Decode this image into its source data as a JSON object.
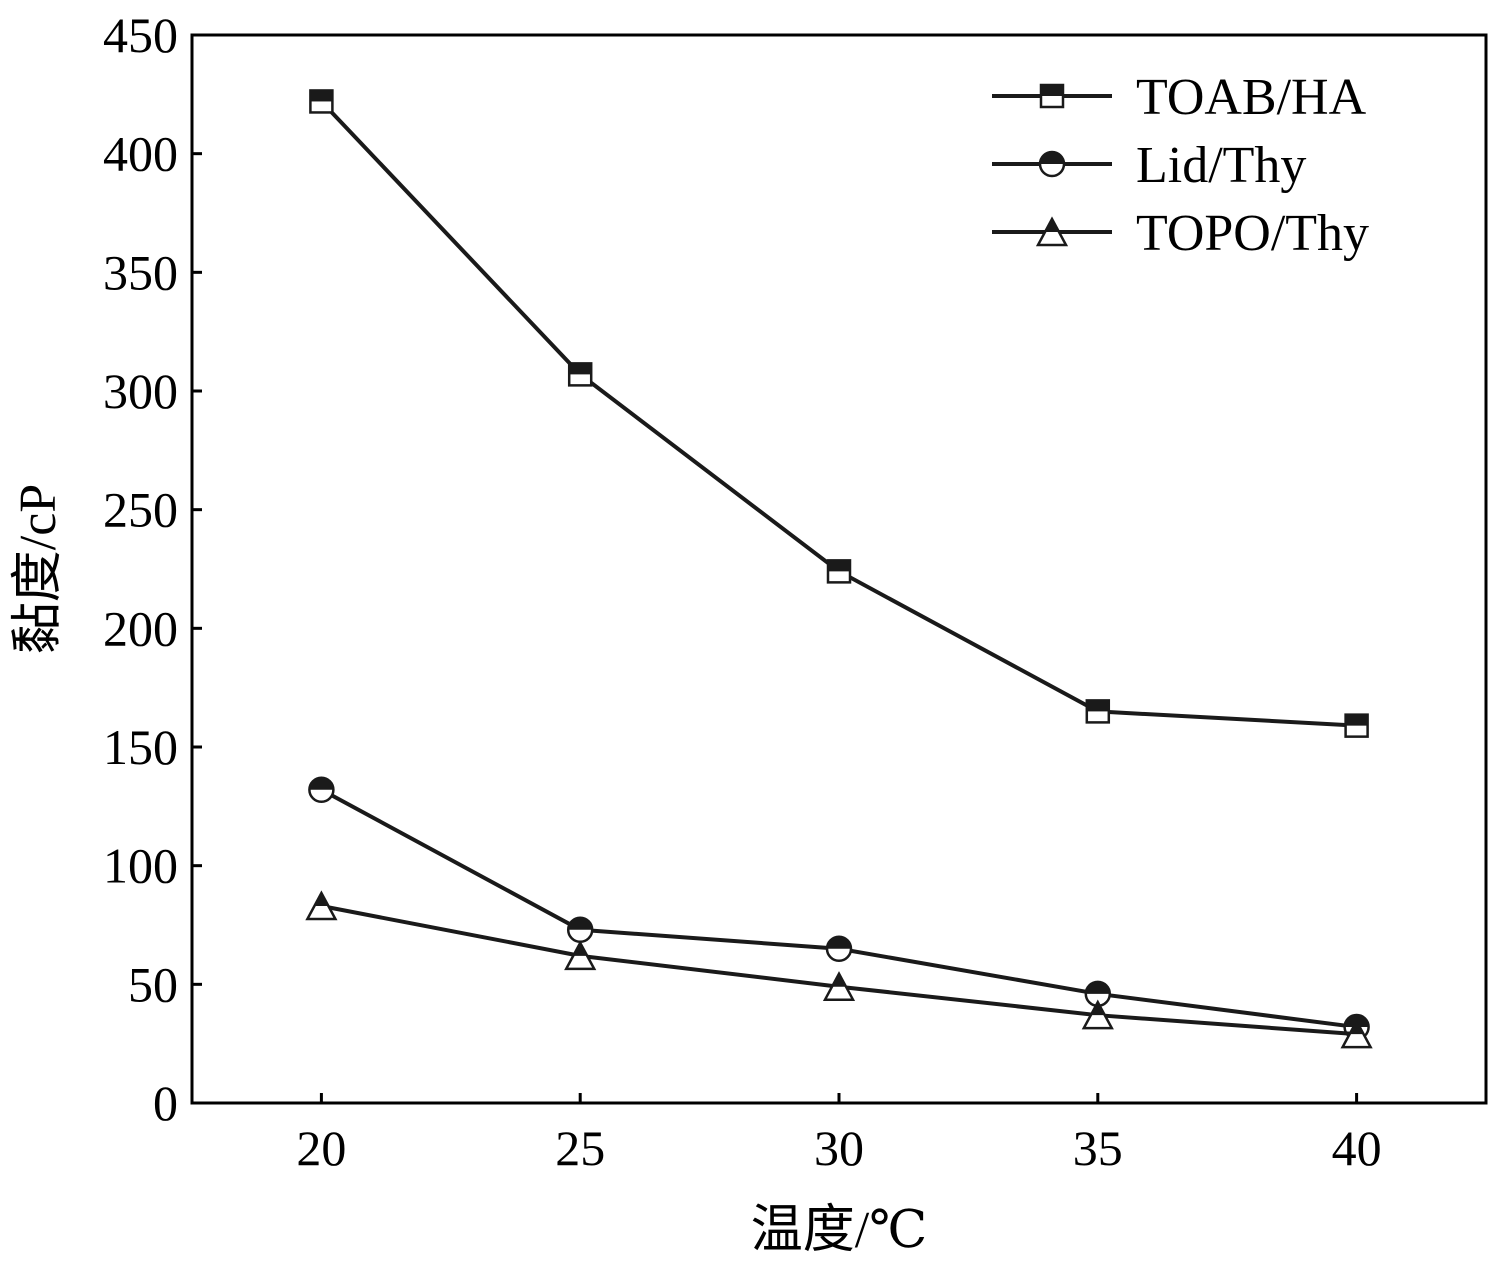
{
  "chart_data": {
    "type": "line",
    "title": "",
    "xlabel": "温度/℃",
    "ylabel": "黏度/cP",
    "x": [
      20,
      25,
      30,
      35,
      40
    ],
    "xlim": [
      17.5,
      42.5
    ],
    "ylim": [
      0,
      450
    ],
    "xticks": [
      "20",
      "25",
      "30",
      "35",
      "40"
    ],
    "yticks": [
      "0",
      "50",
      "100",
      "150",
      "200",
      "250",
      "300",
      "350",
      "400",
      "450"
    ],
    "grid": false,
    "legend_position": "top-right",
    "series": [
      {
        "name": "TOAB/HA",
        "marker": "half-filled-square",
        "values": [
          422,
          307,
          224,
          165,
          159
        ]
      },
      {
        "name": "Lid/Thy",
        "marker": "half-filled-circle",
        "values": [
          132,
          73,
          65,
          46,
          32
        ]
      },
      {
        "name": "TOPO/Thy",
        "marker": "half-filled-triangle",
        "values": [
          83,
          62,
          49,
          37,
          29
        ]
      }
    ],
    "colors": {
      "line": "#1a1a1a",
      "marker_fill": "#1a1a1a",
      "marker_bg": "#ffffff"
    }
  }
}
